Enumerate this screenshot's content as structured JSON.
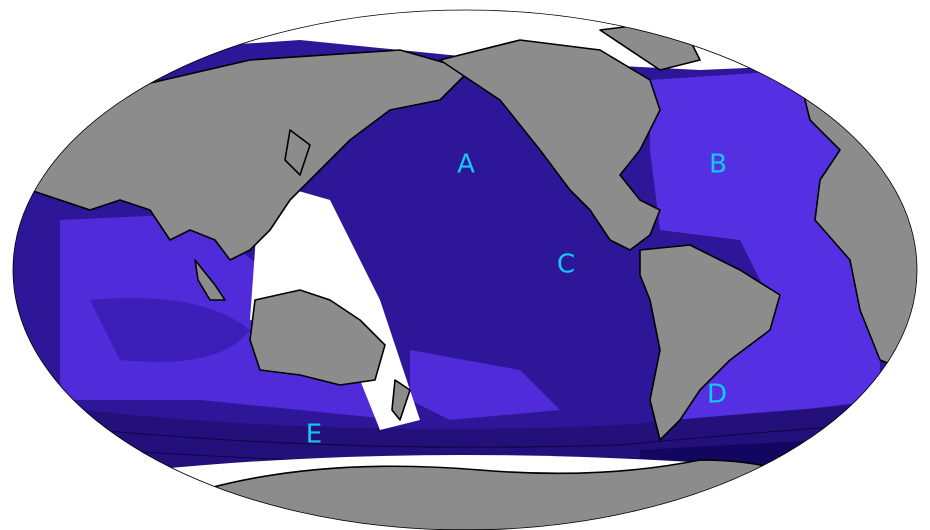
{
  "map": {
    "labels": [
      "A",
      "B",
      "C",
      "D",
      "E"
    ]
  }
}
